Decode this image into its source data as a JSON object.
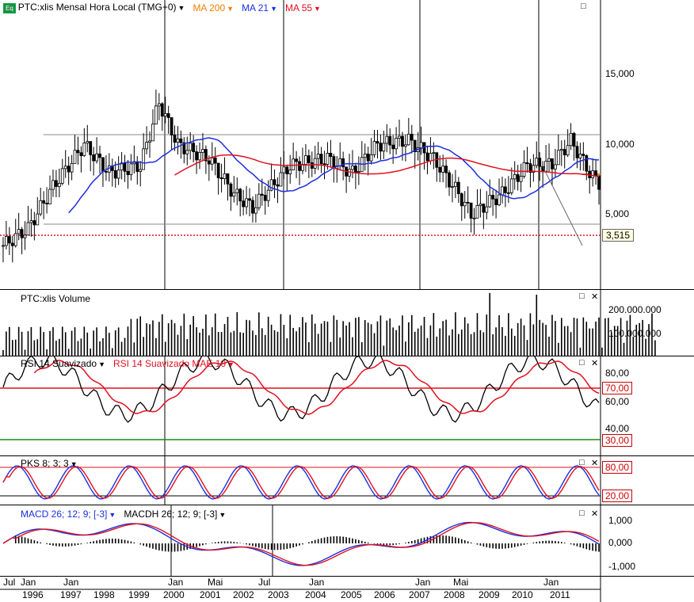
{
  "main": {
    "symbol_label": "PTC:xlis Mensal Hora Local (TMG+0)",
    "eq_badge": "Eq",
    "ma200_label": "MA 200",
    "ma21_label": "MA 21",
    "ma55_label": "MA 55",
    "colors": {
      "ma200": "#f07c00",
      "ma21": "#1a2fe0",
      "ma55": "#e01020"
    },
    "y_ticks": [
      "15,000",
      "10,000",
      "5,000"
    ],
    "last_price": "3,515"
  },
  "volume": {
    "label": "PTC:xlis Volume",
    "y_ticks": [
      "200.000.000",
      "100.000.000"
    ]
  },
  "rsi": {
    "label1": "RSI 14 Suavizado",
    "label2": "RSI 14 Suavizado MAE 10",
    "y_ticks": [
      "80,00",
      "60,00",
      "40,00"
    ],
    "level_high": "70,00",
    "level_low": "30,00"
  },
  "pks": {
    "label": "PKS 8; 3; 3",
    "level_high": "80,00",
    "level_low": "20,00"
  },
  "macd": {
    "label1": "MACD 26; 12; 9; [-3]",
    "label2": "MACDH 26; 12; 9; [-3]",
    "y_ticks": [
      "1,000",
      "0,000",
      "-1,000"
    ]
  },
  "xaxis": {
    "months": [
      "Jul",
      "Jan",
      "Jan",
      "Jan",
      "Mai",
      "Jul",
      "Jan",
      "Jan",
      "Mai",
      "Jan"
    ],
    "years": [
      "1996",
      "1997",
      "1998",
      "1999",
      "2000",
      "2001",
      "2002",
      "2003",
      "2004",
      "2005",
      "2006",
      "2007",
      "2008",
      "2009",
      "2010",
      "2011"
    ]
  },
  "chart_data": {
    "type": "line",
    "title": "PTC:xlis Mensal Hora Local (TMG+0)",
    "x": [
      "1996",
      "1997",
      "1998",
      "1999",
      "2000",
      "2001",
      "2002",
      "2003",
      "2004",
      "2005",
      "2006",
      "2007",
      "2008",
      "2009",
      "2010",
      "2011"
    ],
    "series": [
      {
        "name": "PTC:xlis",
        "values": [
          3.2,
          7.0,
          8.0,
          9.5,
          10.0,
          8.5,
          6.0,
          6.5,
          8.5,
          8.0,
          10.0,
          10.2,
          5.5,
          7.5,
          9.0,
          3.5
        ]
      },
      {
        "name": "MA 21",
        "values": [
          null,
          4.0,
          7.0,
          8.0,
          10.0,
          10.0,
          8.0,
          6.0,
          8.0,
          8.5,
          8.8,
          9.5,
          8.0,
          7.0,
          8.0,
          5.5
        ]
      },
      {
        "name": "MA 55",
        "values": [
          null,
          null,
          null,
          null,
          7.0,
          9.0,
          9.0,
          8.5,
          8.3,
          8.5,
          8.5,
          9.0,
          9.0,
          8.5,
          8.5,
          6.8
        ]
      }
    ],
    "last_value": 3.515,
    "ylim": [
      0,
      20
    ]
  }
}
